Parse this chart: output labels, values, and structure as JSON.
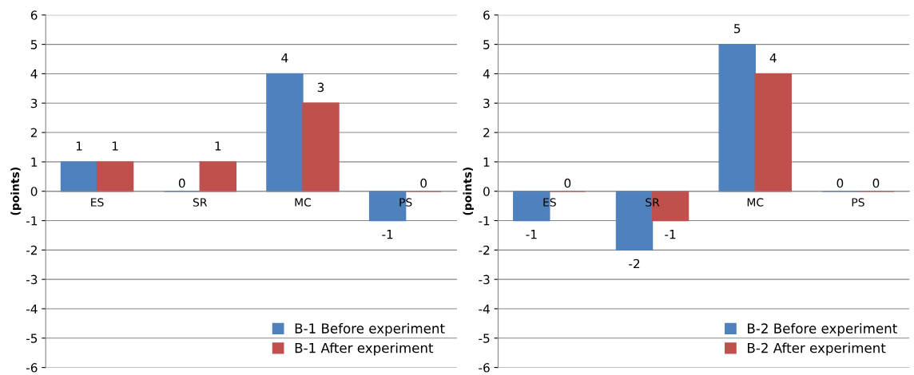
{
  "chart_data": [
    {
      "type": "bar",
      "ylabel": "(points)",
      "categories": [
        "ES",
        "SR",
        "MC",
        "PS"
      ],
      "series": [
        {
          "name": "B-1 Before experiment",
          "color": "#4f81bd",
          "values": [
            1,
            0,
            4,
            -1
          ]
        },
        {
          "name": "B-1 After experiment",
          "color": "#c0504d",
          "values": [
            1,
            1,
            3,
            0
          ]
        }
      ],
      "ylim": [
        -6,
        6
      ],
      "yticks": [
        -6,
        -5,
        -4,
        -3,
        -2,
        -1,
        0,
        1,
        2,
        3,
        4,
        5,
        6
      ],
      "grid": "y",
      "legend": "bottom right",
      "data_labels": true
    },
    {
      "type": "bar",
      "ylabel": "(points)",
      "categories": [
        "ES",
        "SR",
        "MC",
        "PS"
      ],
      "series": [
        {
          "name": "B-2 Before experiment",
          "color": "#4f81bd",
          "values": [
            -1,
            -2,
            5,
            0
          ]
        },
        {
          "name": "B-2 After experiment",
          "color": "#c0504d",
          "values": [
            0,
            -1,
            4,
            0
          ]
        }
      ],
      "ylim": [
        -6,
        6
      ],
      "yticks": [
        -6,
        -5,
        -4,
        -3,
        -2,
        -1,
        0,
        1,
        2,
        3,
        4,
        5,
        6
      ],
      "grid": "y",
      "legend": "bottom right",
      "data_labels": true
    }
  ]
}
